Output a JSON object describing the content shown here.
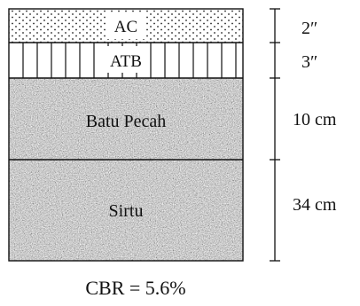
{
  "layers": [
    {
      "label": "AC",
      "thickness": "2″",
      "pattern": "dots"
    },
    {
      "label": "ATB",
      "thickness": "3″",
      "pattern": "vertical-lines"
    },
    {
      "label": "Batu Pecah",
      "thickness": "10 cm",
      "pattern": "granular"
    },
    {
      "label": "Sirtu",
      "thickness": "34 cm",
      "pattern": "granular"
    }
  ],
  "cbr": "CBR = 5.6%",
  "colors": {
    "line": "#111111",
    "granular_base": "#a9a9a9",
    "background": "#ffffff"
  }
}
